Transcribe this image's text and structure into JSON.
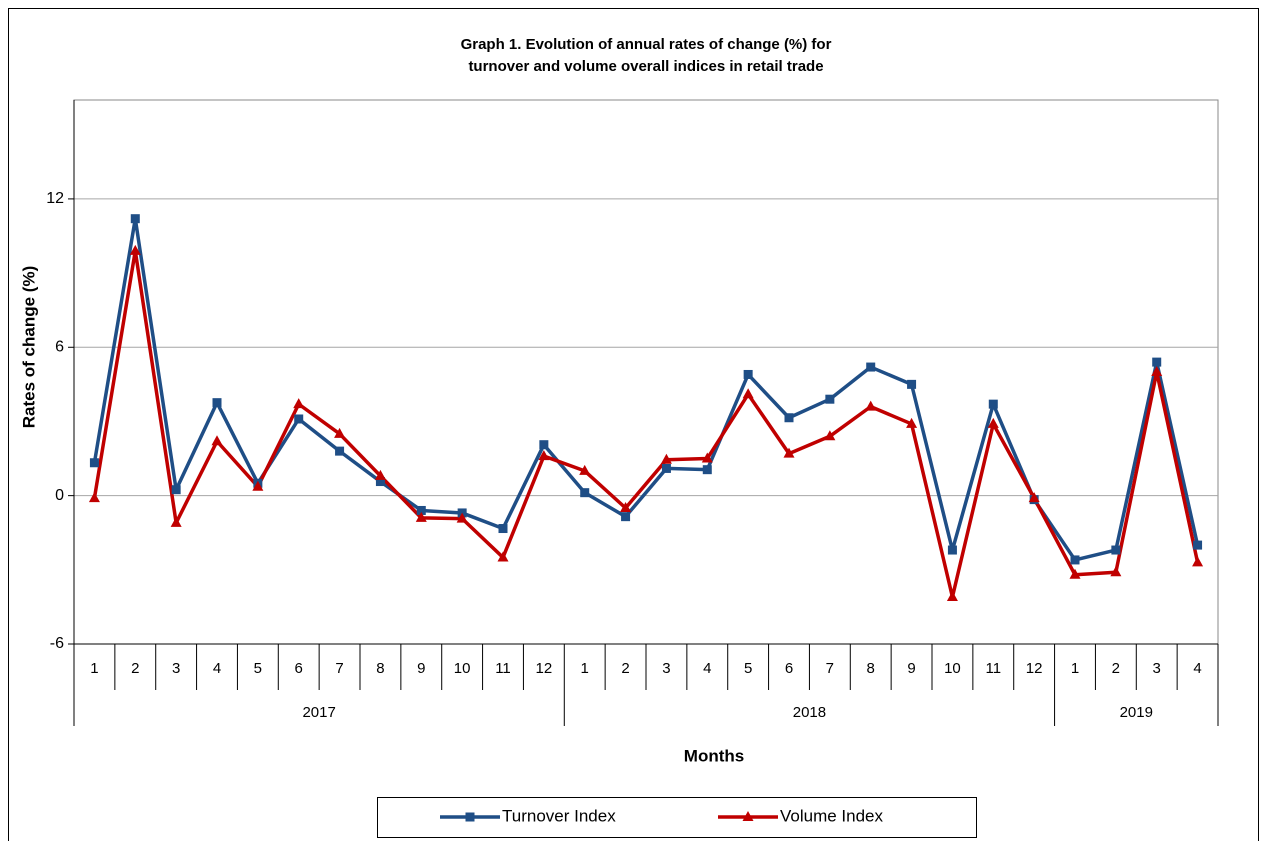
{
  "chart_data": {
    "type": "line",
    "title": "Graph 1. Evolution of annual rates of change (%) for",
    "subtitle": "turnover and volume overall indices  in retail trade",
    "x_label": "Months",
    "y_label": "Rates of change (%)",
    "category_groups": [
      {
        "label": "2017",
        "categories": [
          "1",
          "2",
          "3",
          "4",
          "5",
          "6",
          "7",
          "8",
          "9",
          "10",
          "11",
          "12"
        ]
      },
      {
        "label": "2018",
        "categories": [
          "1",
          "2",
          "3",
          "4",
          "5",
          "6",
          "7",
          "8",
          "9",
          "10",
          "11",
          "12"
        ]
      },
      {
        "label": "2019",
        "categories": [
          "1",
          "2",
          "3",
          "4"
        ]
      }
    ],
    "series": [
      {
        "name": "Turnover Index",
        "color": "#1F4E86",
        "marker": "square",
        "values": [
          1.33,
          11.2,
          0.24,
          3.76,
          0.5,
          3.1,
          1.8,
          0.57,
          -0.6,
          -0.7,
          -1.33,
          2.06,
          0.12,
          -0.85,
          1.1,
          1.05,
          4.9,
          3.15,
          3.9,
          5.2,
          4.5,
          -2.2,
          3.7,
          -0.16,
          -2.6,
          -2.2,
          5.4,
          -2.0
        ]
      },
      {
        "name": "Volume Index",
        "color": "#C00000",
        "marker": "triangle",
        "values": [
          -0.1,
          9.9,
          -1.1,
          2.2,
          0.36,
          3.7,
          2.5,
          0.8,
          -0.9,
          -0.93,
          -2.5,
          1.6,
          1.0,
          -0.5,
          1.45,
          1.5,
          4.1,
          1.7,
          2.4,
          3.6,
          2.9,
          -4.1,
          2.9,
          -0.1,
          -3.2,
          -3.1,
          5.0,
          -2.7
        ]
      }
    ],
    "ylim": [
      -6,
      16
    ],
    "yticks": [
      -6,
      0,
      6,
      12
    ],
    "grid": true,
    "legend": "bottom"
  }
}
